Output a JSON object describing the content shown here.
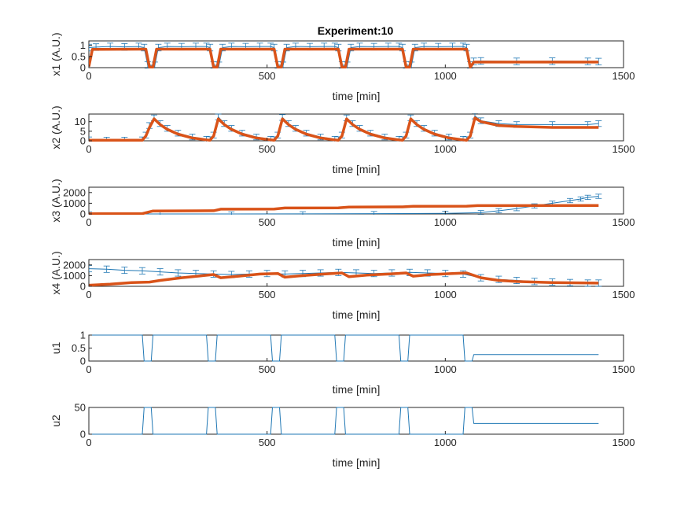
{
  "title": "Experiment:10",
  "colors": {
    "data": "#1f77b4",
    "model": "#d95319",
    "axis": "#262626"
  },
  "chart_data": [
    {
      "type": "line",
      "ylabel": "x1 (A.U.)",
      "xlabel": "time [min]",
      "xlim": [
        0,
        1500
      ],
      "ylim": [
        0,
        1.2
      ],
      "xticks": [
        "0",
        "500",
        "1000",
        "1500"
      ],
      "yticks": [
        "0",
        "0.5",
        "1"
      ],
      "series": [
        {
          "role": "data-with-errorbars",
          "x": [
            0,
            20,
            60,
            100,
            140,
            155,
            165,
            185,
            195,
            220,
            260,
            300,
            330,
            340,
            350,
            365,
            375,
            400,
            440,
            480,
            510,
            520,
            530,
            545,
            555,
            580,
            620,
            660,
            690,
            700,
            710,
            725,
            735,
            760,
            800,
            840,
            870,
            880,
            890,
            905,
            915,
            940,
            980,
            1020,
            1050,
            1060,
            1070,
            1080,
            1100,
            1200,
            1300,
            1400,
            1430
          ],
          "y": [
            0.9,
            0.92,
            0.95,
            0.93,
            0.95,
            0.9,
            0.12,
            0.1,
            0.9,
            0.95,
            0.94,
            0.95,
            0.95,
            0.9,
            0.12,
            0.1,
            0.9,
            0.95,
            0.94,
            0.95,
            0.95,
            0.9,
            0.12,
            0.1,
            0.9,
            0.95,
            0.94,
            0.95,
            0.95,
            0.9,
            0.12,
            0.1,
            0.9,
            0.95,
            0.94,
            0.95,
            0.95,
            0.9,
            0.12,
            0.1,
            0.9,
            0.95,
            0.94,
            0.95,
            0.95,
            0.9,
            0.12,
            0.28,
            0.3,
            0.28,
            0.29,
            0.28,
            0.27
          ],
          "err": 0.15
        },
        {
          "role": "model",
          "x": [
            0,
            10,
            150,
            160,
            170,
            180,
            190,
            330,
            340,
            350,
            360,
            370,
            510,
            520,
            530,
            540,
            550,
            690,
            700,
            710,
            720,
            730,
            870,
            880,
            890,
            900,
            910,
            1050,
            1060,
            1070,
            1080,
            1430
          ],
          "y": [
            0.05,
            0.82,
            0.83,
            0.83,
            0.02,
            0.02,
            0.83,
            0.83,
            0.83,
            0.02,
            0.02,
            0.83,
            0.83,
            0.83,
            0.02,
            0.02,
            0.83,
            0.83,
            0.83,
            0.02,
            0.02,
            0.83,
            0.83,
            0.83,
            0.02,
            0.02,
            0.83,
            0.83,
            0.83,
            0.02,
            0.25,
            0.25
          ]
        }
      ]
    },
    {
      "type": "line",
      "ylabel": "x2 (A.U.)",
      "xlabel": "time [min]",
      "xlim": [
        0,
        1500
      ],
      "ylim": [
        0,
        14
      ],
      "xticks": [
        "0",
        "500",
        "1000",
        "1500"
      ],
      "yticks": [
        "0",
        "5",
        "10"
      ],
      "series": [
        {
          "role": "data-with-errorbars",
          "x": [
            0,
            50,
            100,
            150,
            160,
            170,
            183,
            200,
            220,
            250,
            290,
            330,
            340,
            350,
            363,
            380,
            400,
            430,
            470,
            510,
            520,
            530,
            543,
            560,
            580,
            610,
            650,
            690,
            700,
            710,
            723,
            740,
            760,
            790,
            830,
            870,
            880,
            890,
            903,
            920,
            940,
            970,
            1010,
            1050,
            1060,
            1070,
            1083,
            1100,
            1150,
            1200,
            1300,
            1400,
            1430
          ],
          "y": [
            0.5,
            0.4,
            0.4,
            0.5,
            3,
            8,
            12,
            9,
            6.5,
            4,
            2,
            0.8,
            0.6,
            3,
            12.5,
            9,
            6.5,
            4,
            2,
            0.8,
            0.6,
            3,
            12.2,
            9,
            6.5,
            4,
            2,
            0.8,
            0.6,
            3,
            12,
            9,
            6.5,
            4,
            2,
            0.8,
            0.6,
            3,
            12,
            9,
            6.5,
            4,
            2,
            0.8,
            0.6,
            3,
            13,
            10.5,
            9,
            8.5,
            8.5,
            8.5,
            9
          ],
          "err": 1.5
        },
        {
          "role": "model",
          "x": [
            0,
            150,
            160,
            170,
            183,
            200,
            220,
            250,
            290,
            330,
            340,
            350,
            363,
            380,
            400,
            430,
            470,
            510,
            520,
            530,
            543,
            560,
            580,
            610,
            650,
            690,
            700,
            710,
            723,
            740,
            760,
            790,
            830,
            870,
            880,
            890,
            903,
            920,
            940,
            970,
            1010,
            1050,
            1060,
            1070,
            1083,
            1100,
            1150,
            1200,
            1300,
            1430
          ],
          "y": [
            0.3,
            0.3,
            2.5,
            7,
            11.5,
            8.5,
            6,
            3.5,
            1.5,
            0.5,
            0.3,
            2.5,
            11.5,
            8.5,
            6,
            3.5,
            1.5,
            0.5,
            0.3,
            2.5,
            11.5,
            8.5,
            6,
            3.5,
            1.5,
            0.5,
            0.3,
            2.5,
            11.5,
            8.5,
            6,
            3.5,
            1.5,
            0.5,
            0.3,
            2.5,
            11.5,
            8.5,
            6,
            3.5,
            1.5,
            0.5,
            0.3,
            2.5,
            12,
            10,
            8,
            7.5,
            7,
            7
          ]
        }
      ]
    },
    {
      "type": "line",
      "ylabel": "x3 (A.U.)",
      "xlabel": "time [min]",
      "xlim": [
        0,
        1500
      ],
      "ylim": [
        0,
        2500
      ],
      "xticks": [
        "0",
        "500",
        "1000",
        "1500"
      ],
      "yticks": [
        "0",
        "1000",
        "2000"
      ],
      "series": [
        {
          "role": "data-with-errorbars",
          "x": [
            0,
            200,
            400,
            600,
            800,
            1000,
            1100,
            1150,
            1200,
            1250,
            1300,
            1350,
            1380,
            1400,
            1430
          ],
          "y": [
            0,
            0,
            0,
            10,
            30,
            60,
            120,
            300,
            500,
            750,
            1000,
            1250,
            1400,
            1550,
            1650
          ],
          "err": 200
        },
        {
          "role": "model",
          "x": [
            0,
            150,
            180,
            350,
            370,
            520,
            550,
            700,
            730,
            880,
            910,
            1060,
            1090,
            1430
          ],
          "y": [
            20,
            30,
            280,
            300,
            450,
            460,
            560,
            570,
            650,
            660,
            720,
            730,
            780,
            790
          ]
        }
      ]
    },
    {
      "type": "line",
      "ylabel": "x4 (A.U.)",
      "xlabel": "time [min]",
      "xlim": [
        0,
        1500
      ],
      "ylim": [
        0,
        2500
      ],
      "xticks": [
        "0",
        "500",
        "1000",
        "1500"
      ],
      "yticks": [
        "0",
        "1000",
        "2000"
      ],
      "series": [
        {
          "role": "data-with-errorbars",
          "x": [
            0,
            50,
            100,
            150,
            200,
            250,
            300,
            350,
            400,
            450,
            500,
            550,
            600,
            650,
            700,
            750,
            800,
            850,
            900,
            950,
            1000,
            1050,
            1100,
            1150,
            1200,
            1250,
            1300,
            1350,
            1400,
            1430
          ],
          "y": [
            1650,
            1600,
            1500,
            1450,
            1350,
            1250,
            1200,
            1150,
            1100,
            1150,
            1200,
            1150,
            1200,
            1250,
            1300,
            1250,
            1200,
            1250,
            1300,
            1250,
            1200,
            1150,
            800,
            650,
            550,
            450,
            400,
            350,
            300,
            300
          ],
          "err": 300
        },
        {
          "role": "model",
          "x": [
            0,
            60,
            120,
            170,
            200,
            260,
            320,
            350,
            370,
            420,
            480,
            530,
            550,
            600,
            660,
            710,
            730,
            780,
            840,
            890,
            910,
            960,
            1020,
            1060,
            1100,
            1150,
            1200,
            1300,
            1430
          ],
          "y": [
            100,
            200,
            350,
            400,
            550,
            800,
            1000,
            1100,
            800,
            950,
            1150,
            1200,
            850,
            1000,
            1150,
            1250,
            900,
            1050,
            1150,
            1250,
            950,
            1100,
            1200,
            1250,
            800,
            550,
            450,
            350,
            300
          ]
        }
      ]
    },
    {
      "type": "line",
      "ylabel": "u1",
      "xlabel": "time [min]",
      "xlim": [
        0,
        1500
      ],
      "ylim": [
        0,
        1
      ],
      "xticks": [
        "0",
        "500",
        "1000",
        "1500"
      ],
      "yticks": [
        "0",
        "0.5",
        "1"
      ],
      "series": [
        {
          "role": "input",
          "x": [
            0,
            150,
            155,
            175,
            180,
            330,
            335,
            355,
            360,
            510,
            515,
            535,
            540,
            690,
            695,
            715,
            720,
            870,
            875,
            895,
            900,
            1050,
            1055,
            1075,
            1080,
            1430
          ],
          "y": [
            1,
            1,
            0,
            0,
            1,
            1,
            0,
            0,
            1,
            1,
            0,
            0,
            1,
            1,
            0,
            0,
            1,
            1,
            0,
            0,
            1,
            1,
            0,
            0,
            0.25,
            0.25
          ]
        }
      ]
    },
    {
      "type": "line",
      "ylabel": "u2",
      "xlabel": "time [min]",
      "xlim": [
        0,
        1500
      ],
      "ylim": [
        0,
        50
      ],
      "xticks": [
        "0",
        "500",
        "1000",
        "1500"
      ],
      "yticks": [
        "0",
        "50"
      ],
      "series": [
        {
          "role": "input",
          "x": [
            0,
            150,
            155,
            175,
            180,
            330,
            335,
            355,
            360,
            510,
            515,
            535,
            540,
            690,
            695,
            715,
            720,
            870,
            875,
            895,
            900,
            1050,
            1055,
            1075,
            1080,
            1430
          ],
          "y": [
            0,
            0,
            50,
            50,
            0,
            0,
            50,
            50,
            0,
            0,
            50,
            50,
            0,
            0,
            50,
            50,
            0,
            0,
            50,
            50,
            0,
            0,
            50,
            50,
            20,
            20
          ]
        }
      ]
    }
  ]
}
